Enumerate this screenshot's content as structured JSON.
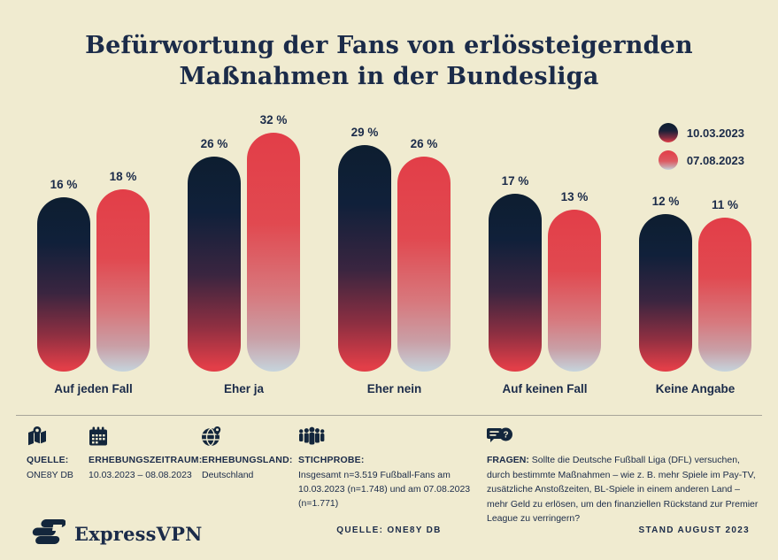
{
  "title": "Befürwortung der Fans von erlössteigernden Maßnahmen in der Bundesliga",
  "legend": {
    "items": [
      {
        "label": "10.03.2023",
        "swatch": "navy-to-red-gradient-circle"
      },
      {
        "label": "07.08.2023",
        "swatch": "red-to-light-gradient-circle"
      }
    ]
  },
  "chart_data": {
    "type": "bar",
    "title": "Befürwortung der Fans von erlössteigernden Maßnahmen in der Bundesliga",
    "categories": [
      "Auf jeden Fall",
      "Eher ja",
      "Eher nein",
      "Auf keinen Fall",
      "Keine Angabe"
    ],
    "series": [
      {
        "name": "10.03.2023",
        "values": [
          16,
          26,
          29,
          17,
          12
        ],
        "value_labels": [
          "16 %",
          "26 %",
          "29 %",
          "17 %",
          "12 %"
        ]
      },
      {
        "name": "07.08.2023",
        "values": [
          18,
          32,
          26,
          13,
          11
        ],
        "value_labels": [
          "18 %",
          "32 %",
          "26 %",
          "13 %",
          "11 %"
        ]
      }
    ],
    "unit": "%",
    "xlabel": "",
    "ylabel": "",
    "grid": false,
    "legend_position": "top-right",
    "bar_style": "rounded-pill-gradient"
  },
  "meta": {
    "source": {
      "label": "QUELLE:",
      "value": "ONE8Y DB",
      "icon": "map-icon"
    },
    "period": {
      "label": "ERHEBUNGSZEITRAUM:",
      "value": "10.03.2023 – 08.08.2023",
      "icon": "calendar-icon"
    },
    "country": {
      "label": "ERHEBUNGSLAND:",
      "value": "Deutschland",
      "icon": "globe-icon"
    },
    "sample": {
      "label": "STICHPROBE:",
      "value": "Insgesamt n=3.519 Fußball-Fans am 10.03.2023 (n=1.748) und am 07.08.2023 (n=1.771)",
      "icon": "people-icon"
    },
    "question": {
      "label": "FRAGEN:",
      "value": "Sollte die Deutsche Fußball Liga (DFL) versuchen, durch bestimmte Maßnahmen – wie z. B. mehr Spiele im Pay-TV, zusätzliche Anstoßzeiten, BL-Spiele in einem anderen Land – mehr Geld zu erlösen, um den finanziellen Rückstand zur Premier League zu verringern?",
      "icon": "chat-question-icon"
    }
  },
  "footer": {
    "brand": "ExpressVPN",
    "source": "QUELLE: ONE8Y DB",
    "stand": "STAND AUGUST 2023"
  },
  "colors": {
    "background": "#f0ebd0",
    "navy": "#13263c",
    "red": "#e23e48",
    "light_fade": "#c6d4dc",
    "text": "#1b2b49",
    "divider": "#a8a599"
  }
}
